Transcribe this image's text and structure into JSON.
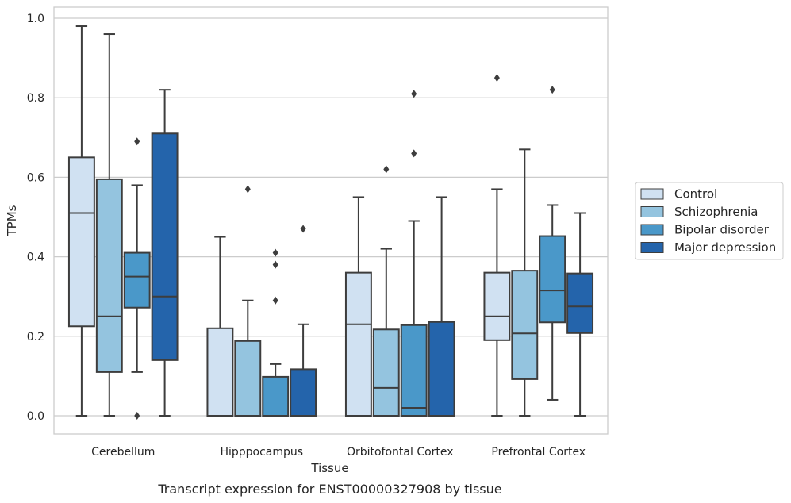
{
  "caption": "Transcript expression for ENST00000327908 by tissue",
  "chart_data": {
    "type": "box",
    "xlabel": "Tissue",
    "ylabel": "TPMs",
    "ylim": [
      -0.045,
      1.03
    ],
    "yticks": [
      "0.0",
      "0.2",
      "0.4",
      "0.6",
      "0.8",
      "1.0"
    ],
    "ytick_values": [
      0.0,
      0.2,
      0.4,
      0.6,
      0.8,
      1.0
    ],
    "grid": "horizontal",
    "legend_position": "right",
    "categories": [
      "Cerebellum",
      "Hipppocampus",
      "Orbitofontal Cortex",
      "Prefrontal Cortex"
    ],
    "series": [
      {
        "name": "Control",
        "color": "#d0e1f2",
        "boxes": [
          {
            "whislo": 0.0,
            "q1": 0.225,
            "med": 0.51,
            "q3": 0.65,
            "whishi": 0.98,
            "fliers": []
          },
          {
            "whislo": 0.0,
            "q1": 0.0,
            "med": 0.0,
            "q3": 0.22,
            "whishi": 0.45,
            "fliers": []
          },
          {
            "whislo": 0.0,
            "q1": 0.0,
            "med": 0.23,
            "q3": 0.36,
            "whishi": 0.55,
            "fliers": []
          },
          {
            "whislo": 0.0,
            "q1": 0.19,
            "med": 0.25,
            "q3": 0.36,
            "whishi": 0.57,
            "fliers": [
              0.85
            ]
          }
        ]
      },
      {
        "name": "Schizophrenia",
        "color": "#94c4df",
        "boxes": [
          {
            "whislo": 0.0,
            "q1": 0.11,
            "med": 0.25,
            "q3": 0.595,
            "whishi": 0.96,
            "fliers": []
          },
          {
            "whislo": 0.0,
            "q1": 0.0,
            "med": 0.0,
            "q3": 0.188,
            "whishi": 0.29,
            "fliers": [
              0.57
            ]
          },
          {
            "whislo": 0.0,
            "q1": 0.0,
            "med": 0.07,
            "q3": 0.217,
            "whishi": 0.42,
            "fliers": [
              0.62
            ]
          },
          {
            "whislo": 0.0,
            "q1": 0.092,
            "med": 0.207,
            "q3": 0.365,
            "whishi": 0.67,
            "fliers": []
          }
        ]
      },
      {
        "name": "Bipolar disorder",
        "color": "#4a98c9",
        "boxes": [
          {
            "whislo": 0.11,
            "q1": 0.272,
            "med": 0.35,
            "q3": 0.41,
            "whishi": 0.58,
            "fliers": [
              0.69,
              0.0
            ]
          },
          {
            "whislo": 0.0,
            "q1": 0.0,
            "med": 0.0,
            "q3": 0.098,
            "whishi": 0.13,
            "fliers": [
              0.29,
              0.38,
              0.41
            ]
          },
          {
            "whislo": 0.0,
            "q1": 0.0,
            "med": 0.02,
            "q3": 0.228,
            "whishi": 0.49,
            "fliers": [
              0.66,
              0.81
            ]
          },
          {
            "whislo": 0.04,
            "q1": 0.235,
            "med": 0.315,
            "q3": 0.452,
            "whishi": 0.53,
            "fliers": [
              0.82
            ]
          }
        ]
      },
      {
        "name": "Major depression",
        "color": "#2464ab",
        "boxes": [
          {
            "whislo": 0.0,
            "q1": 0.14,
            "med": 0.3,
            "q3": 0.71,
            "whishi": 0.82,
            "fliers": []
          },
          {
            "whislo": 0.0,
            "q1": 0.0,
            "med": 0.0,
            "q3": 0.117,
            "whishi": 0.23,
            "fliers": [
              0.47
            ]
          },
          {
            "whislo": 0.0,
            "q1": 0.0,
            "med": 0.0,
            "q3": 0.236,
            "whishi": 0.55,
            "fliers": []
          },
          {
            "whislo": 0.0,
            "q1": 0.208,
            "med": 0.275,
            "q3": 0.358,
            "whishi": 0.51,
            "fliers": []
          }
        ]
      }
    ]
  }
}
